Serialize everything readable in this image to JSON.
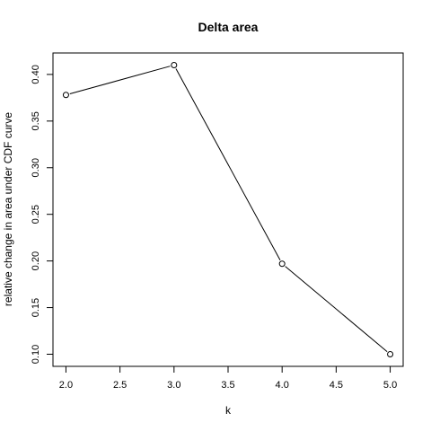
{
  "chart_data": {
    "type": "line",
    "title": "Delta area",
    "xlabel": "k",
    "ylabel": "relative change in area under CDF curve",
    "x": [
      2,
      3,
      4,
      5
    ],
    "y": [
      0.378,
      0.41,
      0.197,
      0.1
    ],
    "xlim": [
      1.88,
      5.12
    ],
    "ylim": [
      0.087,
      0.423
    ],
    "x_ticks": [
      2.0,
      2.5,
      3.0,
      3.5,
      4.0,
      4.5,
      5.0
    ],
    "x_tick_labels": [
      "2.0",
      "2.5",
      "3.0",
      "3.5",
      "4.0",
      "4.5",
      "5.0"
    ],
    "y_ticks": [
      0.1,
      0.15,
      0.2,
      0.25,
      0.3,
      0.35,
      0.4
    ],
    "y_tick_labels": [
      "0.10",
      "0.15",
      "0.20",
      "0.25",
      "0.30",
      "0.35",
      "0.40"
    ],
    "marker": "open-circle",
    "grid": false,
    "line_color": "#000000"
  }
}
